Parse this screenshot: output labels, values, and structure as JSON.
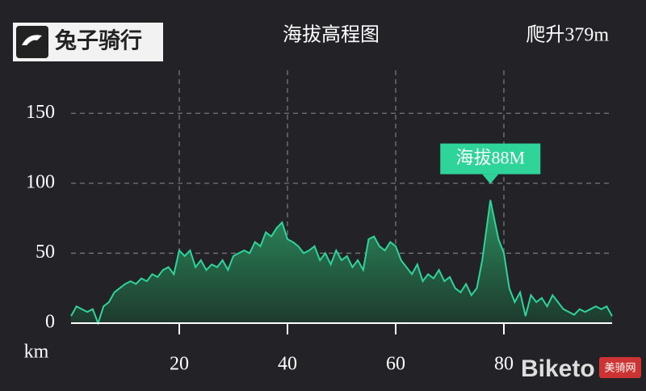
{
  "logo": "兔子骑行",
  "watermark": {
    "brand": "Biketo",
    "site": "美骑网"
  },
  "chart_data": {
    "type": "area",
    "title": "海拔高程图",
    "climb": "爬升379m",
    "x_label": "km",
    "annotation": "海拔88M",
    "x": [
      0,
      1,
      2,
      3,
      4,
      5,
      6,
      7,
      8,
      9,
      10,
      11,
      12,
      13,
      14,
      15,
      16,
      17,
      18,
      19,
      20,
      21,
      22,
      23,
      24,
      25,
      26,
      27,
      28,
      29,
      30,
      31,
      32,
      33,
      34,
      35,
      36,
      37,
      38,
      39,
      40,
      41,
      42,
      43,
      44,
      45,
      46,
      47,
      48,
      49,
      50,
      51,
      52,
      53,
      54,
      55,
      56,
      57,
      58,
      59,
      60,
      61,
      62,
      63,
      64,
      65,
      66,
      67,
      68,
      69,
      70,
      71,
      72,
      73,
      74,
      75,
      76,
      77.5,
      79,
      80,
      81,
      82,
      83,
      84,
      85,
      86,
      87,
      88,
      89,
      90,
      91,
      92,
      93,
      94,
      95,
      96,
      97,
      98,
      99,
      100
    ],
    "values": [
      5,
      12,
      10,
      8,
      10,
      0,
      12,
      15,
      22,
      25,
      28,
      30,
      28,
      32,
      30,
      35,
      33,
      38,
      40,
      35,
      52,
      48,
      52,
      40,
      45,
      38,
      42,
      40,
      45,
      38,
      48,
      50,
      52,
      50,
      58,
      55,
      65,
      62,
      68,
      72,
      60,
      58,
      55,
      50,
      52,
      55,
      45,
      50,
      42,
      52,
      45,
      48,
      40,
      45,
      38,
      60,
      62,
      55,
      52,
      58,
      55,
      45,
      40,
      35,
      42,
      30,
      35,
      32,
      38,
      30,
      33,
      25,
      22,
      28,
      20,
      25,
      45,
      88,
      60,
      50,
      25,
      15,
      22,
      5,
      20,
      15,
      18,
      12,
      20,
      15,
      10,
      8,
      6,
      10,
      8,
      10,
      12,
      10,
      12,
      5
    ],
    "color": "#2fd49a",
    "xlim": [
      0,
      100
    ],
    "xticks": [
      20,
      40,
      60,
      80
    ],
    "ylim": [
      0,
      175
    ],
    "yticks": [
      0,
      50,
      100,
      150
    ],
    "grid": true
  }
}
